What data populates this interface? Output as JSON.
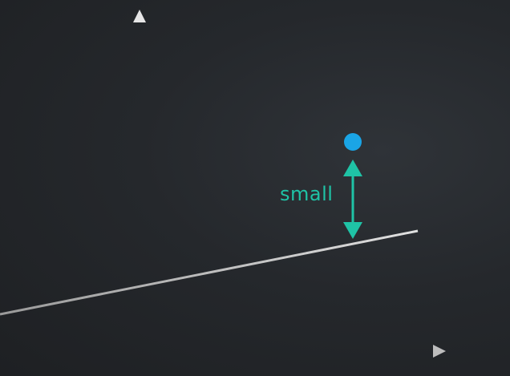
{
  "diagram": {
    "residual_label": "small",
    "colors": {
      "axes": "#d9d9d9",
      "regression_line": "#cfcfcf",
      "data_point": "#1aa5e6",
      "residual_arrow": "#1fc3a6"
    }
  }
}
